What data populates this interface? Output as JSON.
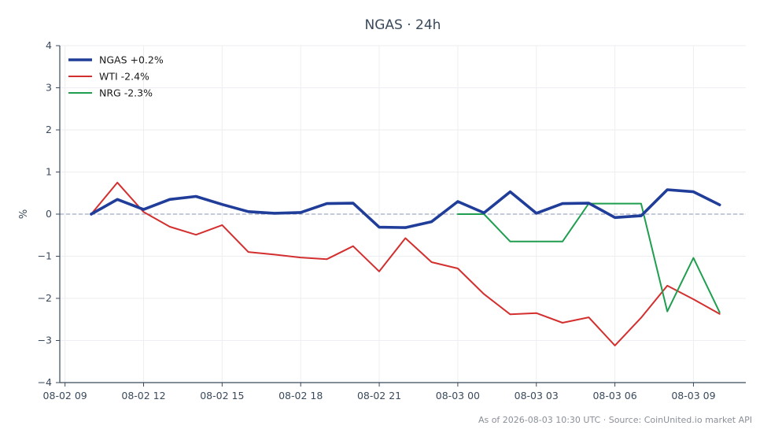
{
  "chart_data": {
    "type": "line",
    "title": "NGAS · 24h",
    "ylabel": "%",
    "xlabel": "",
    "ylim": [
      -4,
      4
    ],
    "yticks": [
      "−4",
      "−3",
      "−2",
      "−1",
      "0",
      "1",
      "2",
      "3",
      "4"
    ],
    "ytick_values": [
      -4,
      -3,
      -2,
      -1,
      0,
      1,
      2,
      3,
      4
    ],
    "xlim": [
      8.8,
      35
    ],
    "xtick_labels": [
      "08-02 09",
      "08-02 12",
      "08-02 15",
      "08-02 18",
      "08-02 21",
      "08-03 00",
      "08-03 03",
      "08-03 06",
      "08-03 09"
    ],
    "xtick_values": [
      9,
      12,
      15,
      18,
      21,
      24,
      27,
      30,
      33
    ],
    "grid": true,
    "legend": "top-left",
    "zero_line": true,
    "series": [
      {
        "name": "NGAS +0.2%",
        "color": "#1f3d99",
        "width": "thick",
        "x": [
          10,
          11,
          12,
          13,
          14,
          15,
          16,
          17,
          18,
          19,
          20,
          21,
          22,
          23,
          24,
          25,
          26,
          27,
          28,
          29,
          30,
          31,
          32,
          33,
          34
        ],
        "y": [
          0.0,
          0.35,
          0.11,
          0.35,
          0.42,
          0.23,
          0.06,
          0.02,
          0.04,
          0.25,
          0.26,
          -0.31,
          -0.32,
          -0.18,
          0.3,
          0.03,
          0.53,
          0.02,
          0.25,
          0.26,
          -0.08,
          -0.04,
          0.58,
          0.53,
          0.22
        ]
      },
      {
        "name": "WTI -2.4%",
        "color": "#d32f2f",
        "width": "normal",
        "x": [
          10,
          11,
          12,
          13,
          14,
          15,
          16,
          17,
          18,
          19,
          20,
          21,
          22,
          23,
          24,
          25,
          26,
          27,
          28,
          29,
          30,
          31,
          32,
          33,
          34
        ],
        "y": [
          0.0,
          0.75,
          0.05,
          -0.3,
          -0.49,
          -0.26,
          -0.9,
          -0.96,
          -1.03,
          -1.07,
          -0.76,
          -1.36,
          -0.57,
          -1.14,
          -1.29,
          -1.9,
          -2.38,
          -2.35,
          -2.58,
          -2.45,
          -3.12,
          -2.46,
          -1.7,
          -2.02,
          -2.37
        ]
      },
      {
        "name": "NRG -2.3%",
        "color": "#1f9e4f",
        "width": "normal",
        "x": [
          24,
          25,
          26,
          27,
          28,
          29,
          30,
          31,
          32,
          33,
          34
        ],
        "y": [
          0.0,
          0.0,
          -0.65,
          -0.65,
          -0.65,
          0.25,
          0.25,
          0.25,
          -2.31,
          -1.04,
          -2.33
        ]
      }
    ]
  },
  "footnote": "As of 2026-08-03 10:30 UTC · Source: CoinUnited.io market API"
}
